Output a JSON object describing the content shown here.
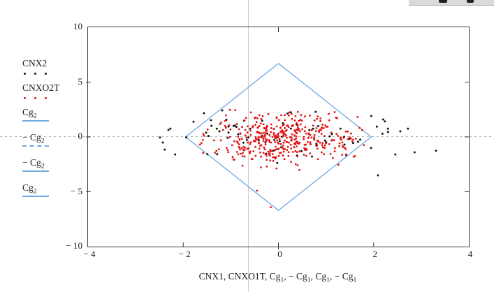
{
  "palette": {
    "background": "#ffffff",
    "red_points": "#e51212",
    "black_points": "#151515",
    "envelope_blue": "#70a8e2",
    "plot_border": "#3c3c3c",
    "zero_line_gray": "#b4b4b4",
    "marker_line_gray": "#cfcfcf",
    "text": "#1c1c1c"
  },
  "legend": {
    "items": [
      {
        "label": "CNX2",
        "sub": "",
        "sample": "dots",
        "color": "#151515"
      },
      {
        "label": "CNXO2T",
        "sub": "",
        "sample": "dots",
        "color": "#e51212"
      },
      {
        "label": "Cg",
        "sub": "2",
        "sample": "solid",
        "color": "#70a8e2"
      },
      {
        "label": "− Cg",
        "sub": "2",
        "sample": "dashed",
        "color": "#70a8e2"
      },
      {
        "label": "− Cg",
        "sub": "2",
        "sample": "solid",
        "color": "#70a8e2"
      },
      {
        "label": "Cg",
        "sub": "2",
        "sample": "solid",
        "color": "#70a8e2"
      }
    ]
  },
  "chart_data": {
    "type": "scatter",
    "title": "",
    "xlabel_runs": [
      {
        "t": "CNX1, CNXO1T, Cg"
      },
      {
        "s": "1"
      },
      {
        "t": ", − Cg"
      },
      {
        "s": "1"
      },
      {
        "t": ", Cg"
      },
      {
        "s": "1"
      },
      {
        "t": ", − Cg"
      },
      {
        "s": "1"
      }
    ],
    "ylabel": "",
    "xlim": [
      -4,
      4
    ],
    "ylim": [
      -10,
      10
    ],
    "x_ticks": [
      -4,
      -2,
      0,
      2,
      4
    ],
    "x_tick_labels": [
      "− 4",
      "− 2",
      "0",
      "2",
      "4"
    ],
    "y_ticks": [
      10,
      5,
      0,
      -5,
      -10
    ],
    "y_tick_labels": [
      "10",
      "5",
      "0",
      "− 5",
      "− 10"
    ],
    "grid": false,
    "legend_position": "outside-left",
    "zero_line": {
      "orientation": "horizontal",
      "y": 0,
      "style": "dashed",
      "color": "#b4b4b4"
    },
    "marker_line": {
      "orientation": "vertical",
      "x": -0.62,
      "style": "solid",
      "color": "#cfcfcf"
    },
    "series": [
      {
        "name": "CNX2",
        "kind": "scatter",
        "marker": "dot",
        "color": "#151515",
        "radius": 1.5,
        "n": 72,
        "seed": 7,
        "dist": {
          "x_mean": 0.15,
          "x_sd": 1.35,
          "y_mean": 0.1,
          "y_sd": 1.1,
          "x_clip": [
            -2.5,
            2.6
          ],
          "y_clip": [
            -2.7,
            2.5
          ]
        },
        "extra_points": [
          [
            -2.49,
            -0.06
          ],
          [
            -2.43,
            -0.51
          ],
          [
            -2.31,
            0.64
          ],
          [
            -2.27,
            0.76
          ],
          [
            -2.39,
            -1.15
          ],
          [
            -2.17,
            -1.6
          ],
          [
            -1.18,
            2.42
          ],
          [
            1.95,
            1.91
          ],
          [
            2.2,
            1.59
          ],
          [
            2.3,
            0.76
          ],
          [
            2.72,
            0.76
          ],
          [
            2.56,
            0.51
          ],
          [
            2.86,
            -1.4
          ],
          [
            3.31,
            -1.27
          ],
          [
            2.09,
            -3.5
          ]
        ]
      },
      {
        "name": "CNXO2T",
        "kind": "scatter",
        "marker": "dot",
        "color": "#e51212",
        "radius": 1.4,
        "n": 430,
        "seed": 42,
        "dist": {
          "x_mean": 0.1,
          "x_sd": 0.78,
          "y_mean": -0.2,
          "y_sd": 1.1,
          "x_clip": [
            -1.85,
            1.85
          ],
          "y_clip": [
            -3.5,
            2.6
          ]
        },
        "extra_points": [
          [
            -0.16,
            -6.4
          ],
          [
            -0.45,
            -4.9
          ]
        ]
      },
      {
        "name": "Cg2-envelope",
        "kind": "line",
        "color": "#70a8e2",
        "width": 1.3,
        "points": [
          [
            0,
            6.7
          ],
          [
            1.95,
            0
          ],
          [
            0,
            -6.7
          ],
          [
            -1.95,
            0
          ],
          [
            0,
            6.7
          ]
        ]
      }
    ]
  }
}
